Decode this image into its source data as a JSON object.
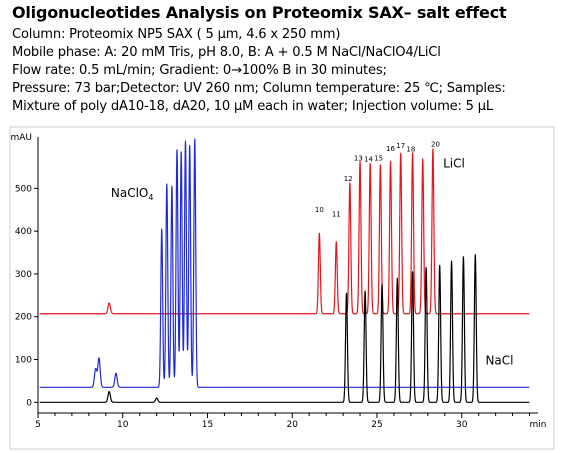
{
  "title": "Oligonucleotides Analysis on Proteomix SAX– salt effect",
  "info_lines": [
    "Column: Proteomix NP5 SAX ( 5 µm, 4.6 x 250 mm)",
    "Mobile phase: A: 20 mM Tris, pH 8.0, B: A + 0.5 M NaCl/NaClO4/LiCl",
    "Flow rate: 0.5 mL/min; Gradient: 0→100% B in 30 minutes;",
    "Pressure: 73 bar;Detector: UV 260 nm; Column temperature: 25 ℃; Samples:",
    "Mixture of poly dA10-18, dA20, 10 µM each in water; Injection volume: 5 µL"
  ],
  "chart_data": {
    "type": "line",
    "xlabel": "min",
    "ylabel": "mAU",
    "xlim": [
      5,
      34.5
    ],
    "ylim": [
      -25,
      620
    ],
    "xticks": [
      5,
      10,
      15,
      20,
      25,
      30
    ],
    "yticks": [
      0,
      100,
      200,
      300,
      400,
      500
    ],
    "colors": {
      "licl": "#e8141c",
      "naclo4": "#1f2ad8",
      "nacl": "#000000"
    },
    "series": [
      {
        "name": "LiCl",
        "color": "#e8141c",
        "baseline": 207,
        "peaks": [
          {
            "x": 9.2,
            "h": 232
          },
          {
            "x": 21.6,
            "h": 395
          },
          {
            "x": 22.6,
            "h": 375
          },
          {
            "x": 23.4,
            "h": 513
          },
          {
            "x": 24.0,
            "h": 563
          },
          {
            "x": 24.6,
            "h": 558
          },
          {
            "x": 25.2,
            "h": 555
          },
          {
            "x": 25.8,
            "h": 563
          },
          {
            "x": 26.4,
            "h": 582
          },
          {
            "x": 27.1,
            "h": 583
          },
          {
            "x": 27.7,
            "h": 569
          },
          {
            "x": 28.3,
            "h": 592
          }
        ]
      },
      {
        "name": "NaClO4",
        "color": "#1f2ad8",
        "baseline": 35,
        "peaks": [
          {
            "x": 8.4,
            "h": 78
          },
          {
            "x": 8.6,
            "h": 103
          },
          {
            "x": 9.6,
            "h": 68
          },
          {
            "x": 12.3,
            "h": 405
          },
          {
            "x": 12.6,
            "h": 510
          },
          {
            "x": 12.9,
            "h": 505
          },
          {
            "x": 13.2,
            "h": 590
          },
          {
            "x": 13.45,
            "h": 585
          },
          {
            "x": 13.7,
            "h": 610
          },
          {
            "x": 13.95,
            "h": 600
          },
          {
            "x": 14.25,
            "h": 615
          }
        ]
      },
      {
        "name": "NaCl",
        "color": "#000000",
        "baseline": 0,
        "peaks": [
          {
            "x": 9.2,
            "h": 25
          },
          {
            "x": 12.0,
            "h": 10
          },
          {
            "x": 23.2,
            "h": 255
          },
          {
            "x": 24.3,
            "h": 260
          },
          {
            "x": 25.3,
            "h": 275
          },
          {
            "x": 26.2,
            "h": 290
          },
          {
            "x": 27.1,
            "h": 305
          },
          {
            "x": 27.9,
            "h": 315
          },
          {
            "x": 28.7,
            "h": 320
          },
          {
            "x": 29.4,
            "h": 330
          },
          {
            "x": 30.1,
            "h": 340
          },
          {
            "x": 30.8,
            "h": 345
          }
        ]
      }
    ],
    "peak_labels": [
      {
        "text": "10",
        "x": 21.6,
        "y": 440
      },
      {
        "text": "11",
        "x": 22.6,
        "y": 430
      },
      {
        "text": "12",
        "x": 23.3,
        "y": 512
      },
      {
        "text": "13",
        "x": 23.9,
        "y": 560
      },
      {
        "text": "14",
        "x": 24.5,
        "y": 558
      },
      {
        "text": "15",
        "x": 25.1,
        "y": 560
      },
      {
        "text": "16",
        "x": 25.8,
        "y": 583
      },
      {
        "text": "17",
        "x": 26.4,
        "y": 590
      },
      {
        "text": "18",
        "x": 27.0,
        "y": 582
      },
      {
        "text": "20",
        "x": 28.45,
        "y": 593
      }
    ],
    "annotations": [
      {
        "text": "NaClO",
        "sub": "4",
        "x": 9.3,
        "y": 480
      },
      {
        "text": "LiCl",
        "x": 28.9,
        "y": 549
      },
      {
        "text": "NaCl",
        "x": 31.4,
        "y": 88
      }
    ]
  }
}
